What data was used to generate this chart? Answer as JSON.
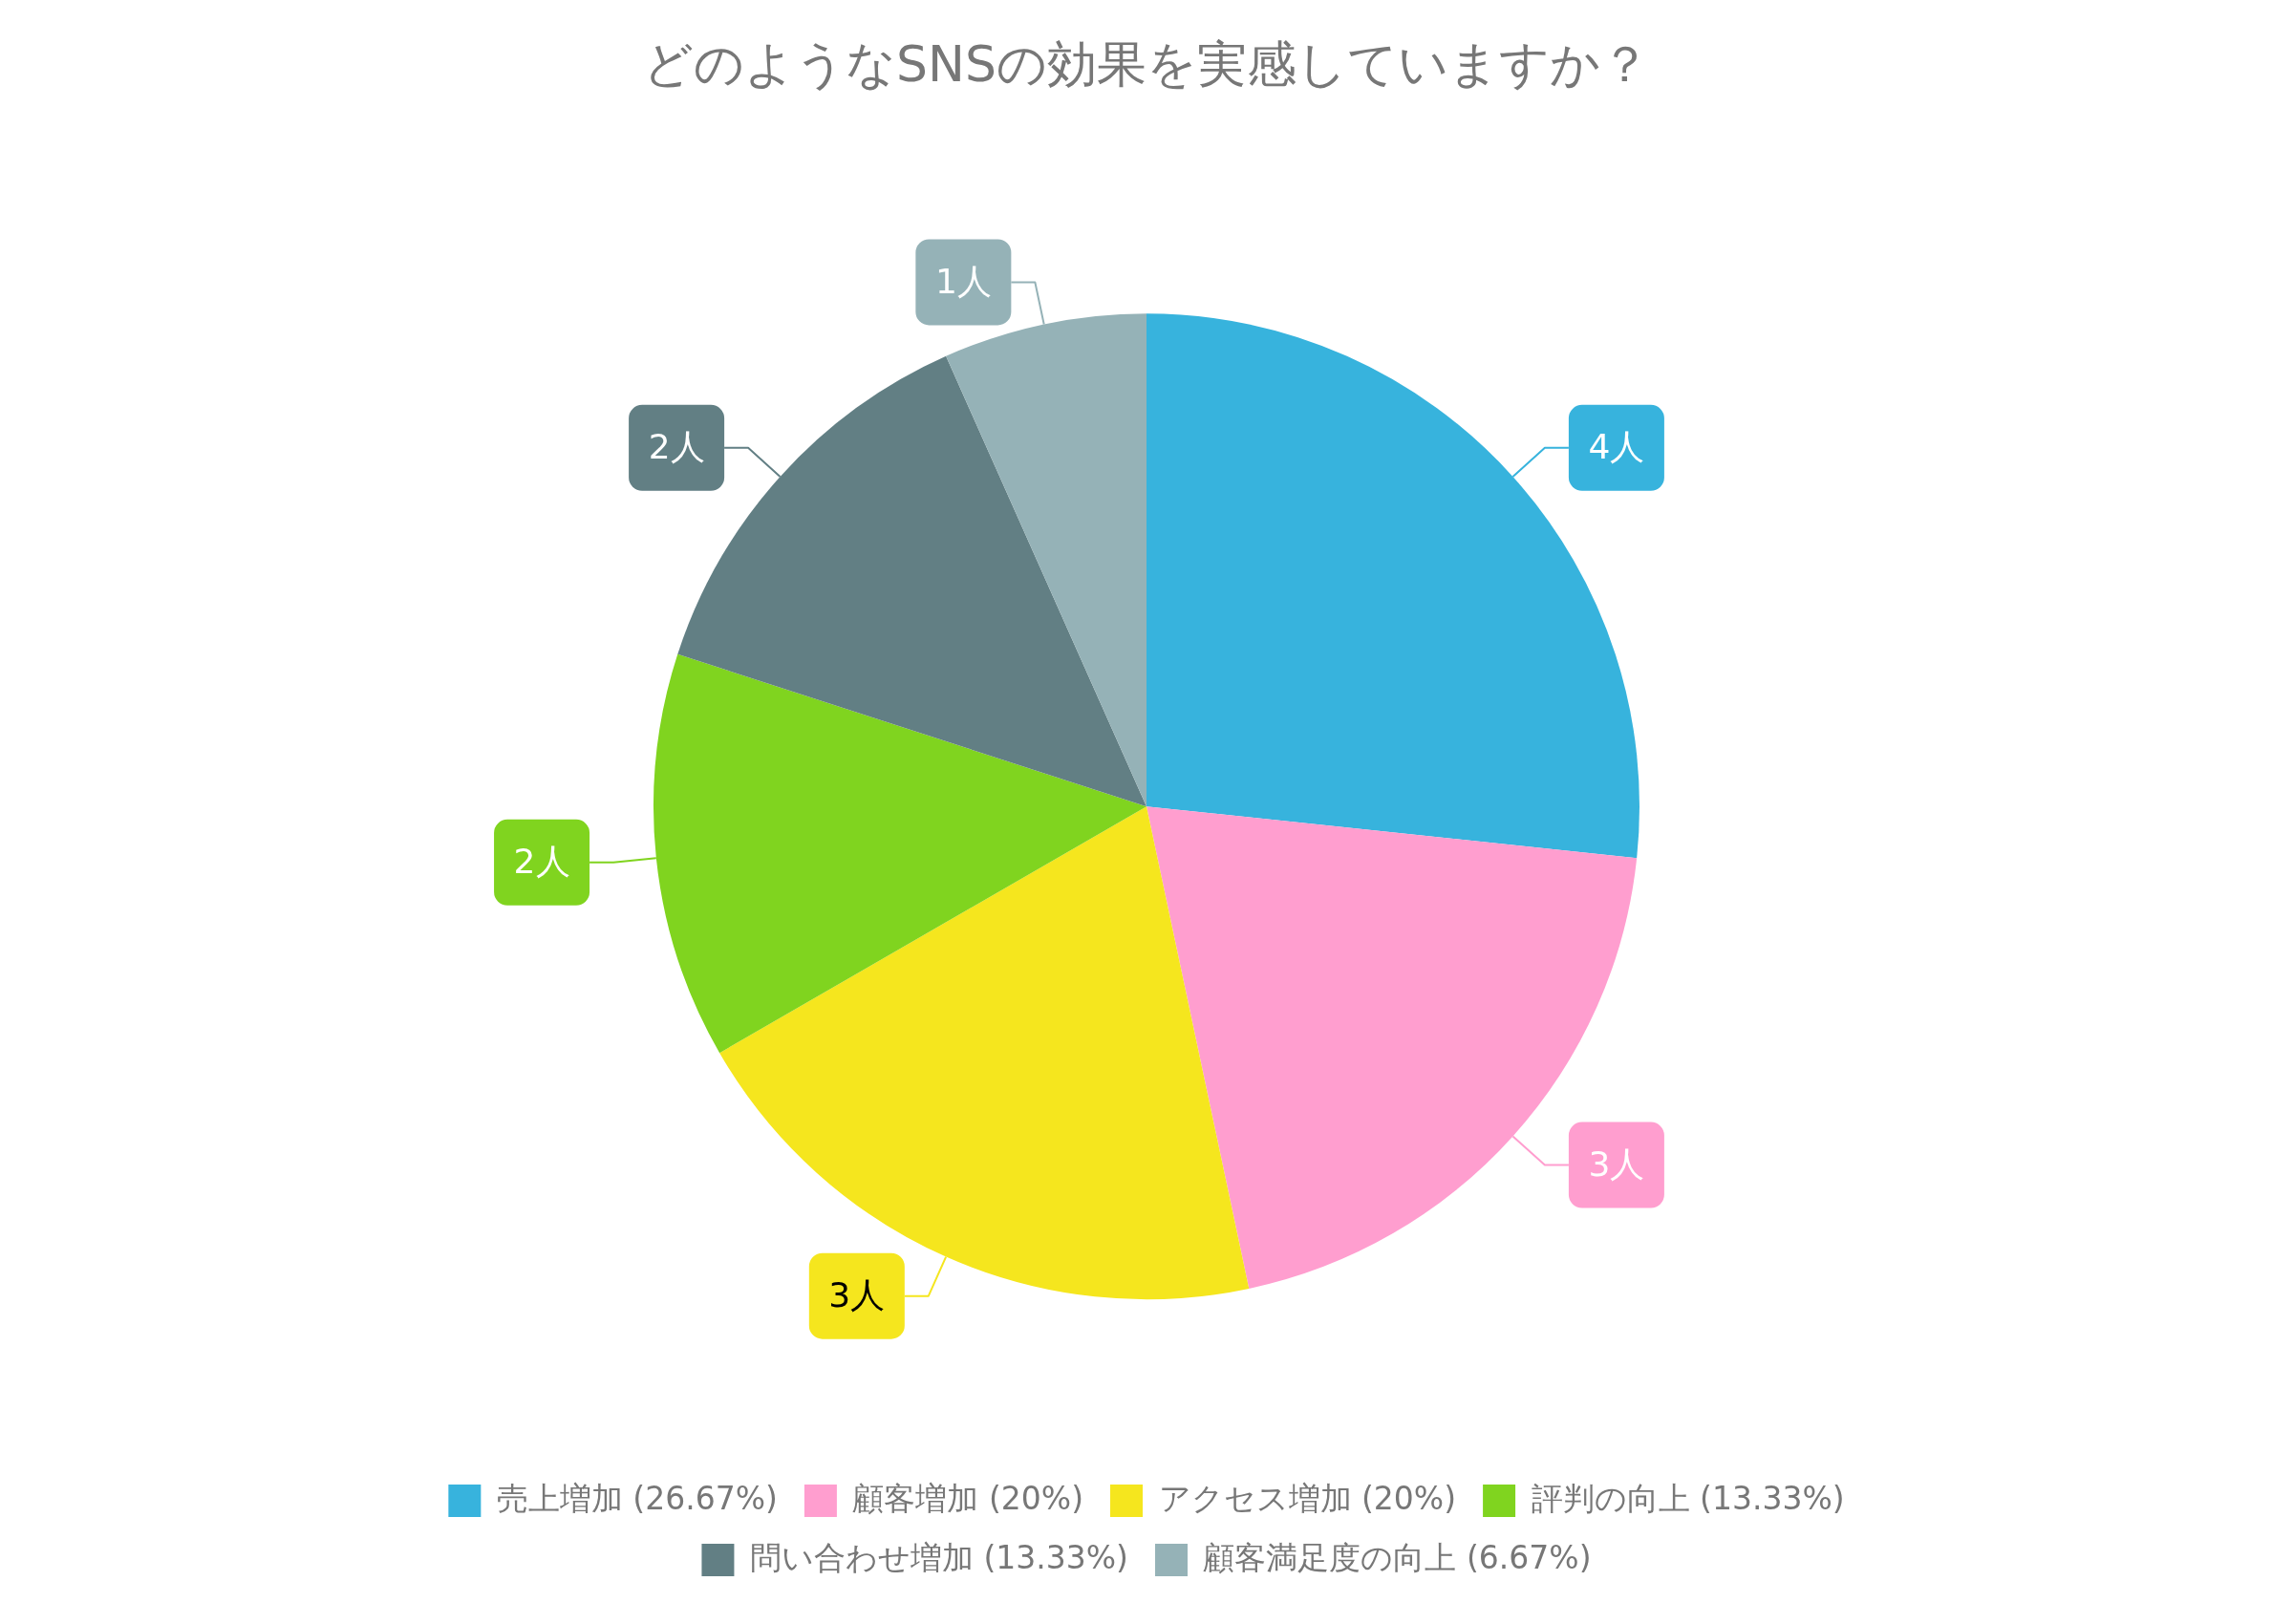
{
  "chart_data": {
    "type": "pie",
    "title": "どのようなSNSの効果を実感していますか？",
    "categories": [
      "売上増加 (26.67%)",
      "顧客増加 (20%)",
      "アクセス増加 (20%)",
      "評判の向上 (13.33%)",
      "問い合わせ増加 (13.33%)",
      "顧客満足度の向上 (6.67%)"
    ],
    "values": [
      4,
      3,
      3,
      2,
      2,
      1
    ],
    "colors": [
      "#37b3dd",
      "#ff9ecf",
      "#f5e61e",
      "#80d41f",
      "#627f84",
      "#95b2b7"
    ],
    "value_labels": [
      "4人",
      "3人",
      "3人",
      "2人",
      "2人",
      "1人"
    ],
    "legend": "bottom"
  }
}
